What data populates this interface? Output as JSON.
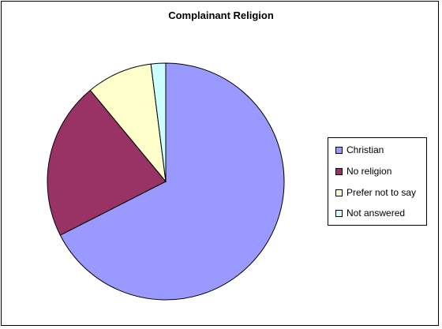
{
  "chart_data": {
    "type": "pie",
    "title": "Complainant Religion",
    "series": [
      {
        "label": "Christian",
        "value": 67.5,
        "color": "#9999ff"
      },
      {
        "label": "No religion",
        "value": 21.5,
        "color": "#993366"
      },
      {
        "label": "Prefer not to say",
        "value": 9.0,
        "color": "#ffffcc"
      },
      {
        "label": "Not answered",
        "value": 2.0,
        "color": "#ccffff"
      }
    ],
    "start_angle_deg": 0,
    "direction": "clockwise",
    "legend_position": "right"
  }
}
